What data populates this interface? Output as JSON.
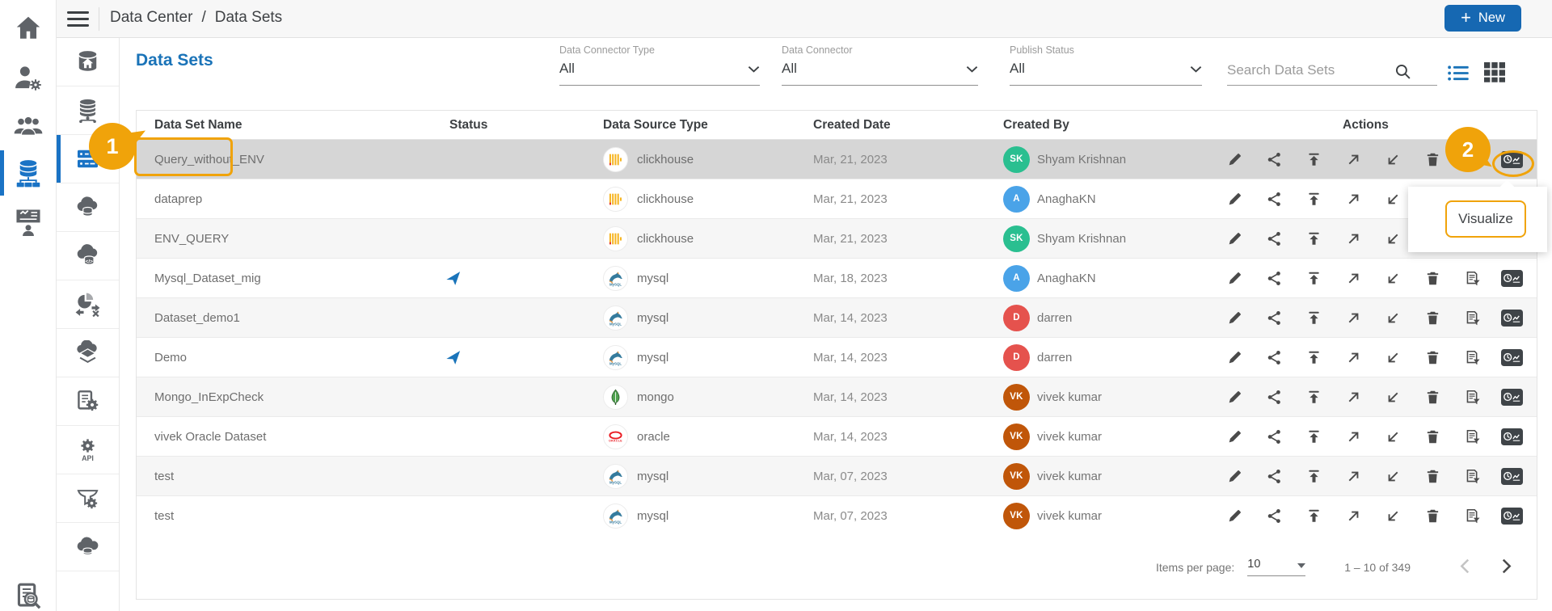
{
  "colors": {
    "accent_blue": "#1a73b8",
    "active_icon_blue": "#1a73c5",
    "new_button_blue": "#1668b2",
    "annotation_orange": "#f0a30a",
    "selected_row": "#d6d6d6",
    "alt_row": "#f6f6f6",
    "status_plane_blue": "#1a74ba",
    "visualize_badge": "#3f4448"
  },
  "topbar": {
    "menu_icon": "menu-icon",
    "breadcrumb": {
      "root": "Data Center",
      "separator": "/",
      "current": "Data Sets"
    },
    "new_button": {
      "plus": "+",
      "label": "New"
    }
  },
  "sidebar_primary": {
    "items": [
      {
        "name": "home",
        "icon": "home-icon",
        "active": false
      },
      {
        "name": "user-admin",
        "icon": "user-settings-icon",
        "active": false
      },
      {
        "name": "groups",
        "icon": "user-groups-icon",
        "active": false
      },
      {
        "name": "data-center",
        "icon": "data-network-icon",
        "active": true
      },
      {
        "name": "boards",
        "icon": "presentation-user-icon",
        "active": false
      }
    ],
    "bottom": {
      "name": "audit-logs",
      "icon": "document-search-icon"
    }
  },
  "sidebar_secondary": {
    "items": [
      {
        "name": "data-center-home",
        "icon": "database-home-icon",
        "active": false
      },
      {
        "name": "data-sources",
        "icon": "database-stack-icon",
        "active": false
      },
      {
        "name": "data-sets",
        "icon": "datasets-icon",
        "active": true
      },
      {
        "name": "cloud-data",
        "icon": "cloud-database-icon",
        "active": false
      },
      {
        "name": "query-data",
        "icon": "cloud-code-icon",
        "active": false
      },
      {
        "name": "data-transform",
        "icon": "data-transform-icon",
        "active": false
      },
      {
        "name": "data-lake",
        "icon": "cloud-layers-icon",
        "active": false
      },
      {
        "name": "data-jobs",
        "icon": "document-gear-icon",
        "active": false
      },
      {
        "name": "api-services",
        "icon": "api-gear-icon",
        "active": false
      },
      {
        "name": "data-filter",
        "icon": "funnel-gear-icon",
        "active": false
      },
      {
        "name": "cloud-storage",
        "icon": "cloud-data-icon",
        "active": false
      }
    ]
  },
  "page": {
    "title": "Data Sets"
  },
  "filters": [
    {
      "name": "data-connector-type",
      "label": "Data Connector Type",
      "value": "All",
      "icon": "chevron-down-icon"
    },
    {
      "name": "data-connector",
      "label": "Data Connector",
      "value": "All",
      "icon": "chevron-down-icon"
    },
    {
      "name": "publish-status",
      "label": "Publish Status",
      "value": "All",
      "icon": "chevron-down-icon"
    }
  ],
  "search": {
    "placeholder": "Search Data Sets",
    "icon": "search-icon"
  },
  "view_toggle": {
    "list_icon": "list-view-icon",
    "grid_icon": "grid-view-icon"
  },
  "table": {
    "columns": [
      "Data Set Name",
      "Status",
      "Data Source Type",
      "Created Date",
      "Created By",
      "Actions"
    ],
    "status_icon": "published-status-icon",
    "action_icons": [
      {
        "name": "edit",
        "icon": "edit-icon"
      },
      {
        "name": "share",
        "icon": "share-icon"
      },
      {
        "name": "publish",
        "icon": "publish-icon"
      },
      {
        "name": "open-external",
        "icon": "arrow-up-right-icon"
      },
      {
        "name": "import",
        "icon": "arrow-down-left-icon"
      },
      {
        "name": "delete",
        "icon": "delete-icon"
      },
      {
        "name": "data-profile",
        "icon": "data-profile-icon"
      },
      {
        "name": "visualize",
        "icon": "visualize-icon"
      }
    ],
    "rows": [
      {
        "name": "Query_without_ENV",
        "published": false,
        "source": "clickhouse",
        "source_icon": "clickhouse-icon",
        "date": "Mar, 21, 2023",
        "creator": "Shyam Krishnan",
        "initials": "SK",
        "avatar_color": "#2abf90",
        "selected": true
      },
      {
        "name": "dataprep",
        "published": false,
        "source": "clickhouse",
        "source_icon": "clickhouse-icon",
        "date": "Mar, 21, 2023",
        "creator": "AnaghaKN",
        "initials": "A",
        "avatar_color": "#4aa3e8",
        "selected": false
      },
      {
        "name": "ENV_QUERY",
        "published": false,
        "source": "clickhouse",
        "source_icon": "clickhouse-icon",
        "date": "Mar, 21, 2023",
        "creator": "Shyam Krishnan",
        "initials": "SK",
        "avatar_color": "#2abf90",
        "selected": false
      },
      {
        "name": "Mysql_Dataset_mig",
        "published": true,
        "source": "mysql",
        "source_icon": "mysql-icon",
        "date": "Mar, 18, 2023",
        "creator": "AnaghaKN",
        "initials": "A",
        "avatar_color": "#4aa3e8",
        "selected": false
      },
      {
        "name": "Dataset_demo1",
        "published": false,
        "source": "mysql",
        "source_icon": "mysql-icon",
        "date": "Mar, 14, 2023",
        "creator": "darren",
        "initials": "D",
        "avatar_color": "#e5524d",
        "selected": false
      },
      {
        "name": "Demo",
        "published": true,
        "source": "mysql",
        "source_icon": "mysql-icon",
        "date": "Mar, 14, 2023",
        "creator": "darren",
        "initials": "D",
        "avatar_color": "#e5524d",
        "selected": false
      },
      {
        "name": "Mongo_InExpCheck",
        "published": false,
        "source": "mongo",
        "source_icon": "mongo-icon",
        "date": "Mar, 14, 2023",
        "creator": "vivek kumar",
        "initials": "VK",
        "avatar_color": "#c05609",
        "selected": false
      },
      {
        "name": "vivek Oracle Dataset",
        "published": false,
        "source": "oracle",
        "source_icon": "oracle-icon",
        "date": "Mar, 14, 2023",
        "creator": "vivek kumar",
        "initials": "VK",
        "avatar_color": "#c05609",
        "selected": false
      },
      {
        "name": "test",
        "published": false,
        "source": "mysql",
        "source_icon": "mysql-icon",
        "date": "Mar, 07, 2023",
        "creator": "vivek kumar",
        "initials": "VK",
        "avatar_color": "#c05609",
        "selected": false
      },
      {
        "name": "test",
        "published": false,
        "source": "mysql",
        "source_icon": "mysql-icon",
        "date": "Mar, 07, 2023",
        "creator": "vivek kumar",
        "initials": "VK",
        "avatar_color": "#c05609",
        "selected": false
      }
    ]
  },
  "annotations": {
    "step1": {
      "number": "1"
    },
    "step2": {
      "number": "2"
    },
    "tooltip": {
      "label": "Visualize"
    }
  },
  "footer": {
    "items_per_page_label": "Items per page:",
    "page_size": "10",
    "caret_icon": "caret-down-icon",
    "range": "1 – 10 of 349",
    "prev_icon": "chevron-left-icon",
    "next_icon": "chevron-right-icon"
  }
}
